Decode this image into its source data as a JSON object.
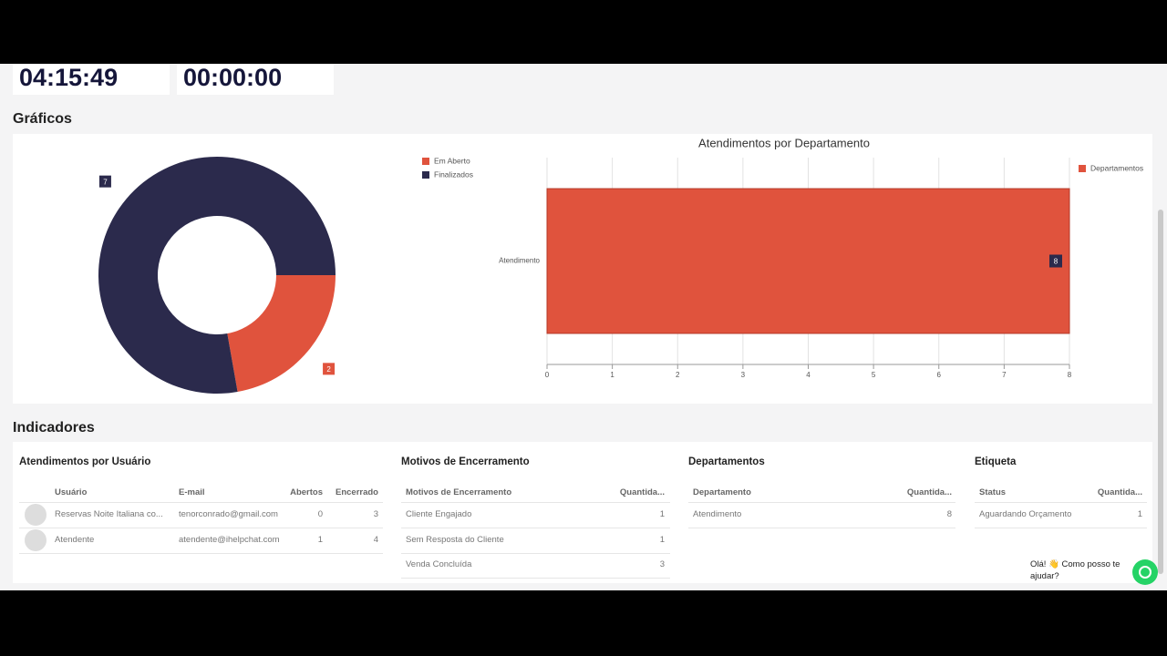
{
  "timers": [
    "04:15:49",
    "00:00:00"
  ],
  "charts_section": "Gráficos",
  "chart_data": [
    {
      "type": "pie",
      "hole": 0.5,
      "categories": [
        "Em Aberto",
        "Finalizados"
      ],
      "values": [
        2,
        7
      ],
      "colors": [
        "#e0533d",
        "#2b2a4c"
      ]
    },
    {
      "type": "bar",
      "orientation": "horizontal",
      "title": "Atendimentos por Departamento",
      "categories": [
        "Atendimento"
      ],
      "series": [
        {
          "name": "Departamentos",
          "color": "#e0533d",
          "values": [
            8
          ]
        }
      ],
      "xlim": [
        0,
        8
      ],
      "xticks": [
        0,
        1,
        2,
        3,
        4,
        5,
        6,
        7,
        8
      ],
      "grid": true
    }
  ],
  "indicators_section": "Indicadores",
  "tables": [
    {
      "title": "Atendimentos por Usuário",
      "columns": [
        "Usuário",
        "E-mail",
        "Abertos",
        "Encerrado"
      ],
      "rows": [
        [
          "Reservas Noite Italiana co...",
          "tenorconrado@gmail.com",
          0,
          3
        ],
        [
          "Atendente",
          "atendente@ihelpchat.com",
          1,
          4
        ]
      ]
    },
    {
      "title": "Motivos de Encerramento",
      "columns": [
        "Motivos de Encerramento",
        "Quantida..."
      ],
      "rows": [
        [
          "Cliente Engajado",
          1
        ],
        [
          "Sem Resposta do Cliente",
          1
        ],
        [
          "Venda Concluída",
          3
        ]
      ]
    },
    {
      "title": "Departamentos",
      "columns": [
        "Departamento",
        "Quantida..."
      ],
      "rows": [
        [
          "Atendimento",
          8
        ]
      ]
    },
    {
      "title": "Etiqueta",
      "columns": [
        "Status",
        "Quantida..."
      ],
      "rows": [
        [
          "Aguardando Orçamento",
          1
        ]
      ]
    }
  ],
  "chat": "Olá! 👋 Como posso te ajudar?"
}
